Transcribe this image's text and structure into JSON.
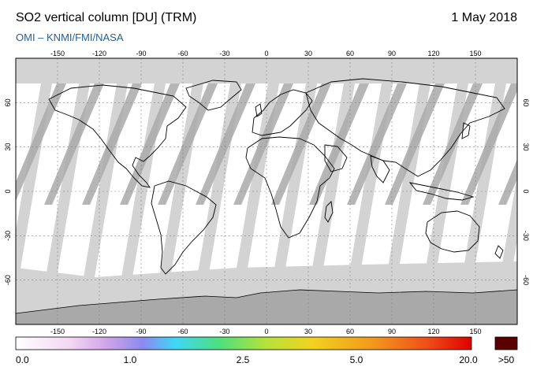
{
  "header": {
    "title": "SO2 vertical column [DU] (TRM)",
    "date": "1 May 2018",
    "credit": "OMI  –  KNMI/FMI/NASA"
  },
  "map": {
    "lon_ticks": [
      "-150",
      "-120",
      "-90",
      "-60",
      "-30",
      "0",
      "30",
      "60",
      "90",
      "120",
      "150"
    ],
    "lat_ticks": [
      "60",
      "30",
      "0",
      "-30",
      "-60"
    ],
    "colors": {
      "background": "#ffffff",
      "no_data": "#d3d3d3",
      "orbit_overlap": "#a9a9a9",
      "coastline": "#000000",
      "grid": "#808080"
    }
  },
  "colorbar": {
    "labels": [
      "0.0",
      "1.0",
      "2.5",
      "5.0",
      "20.0"
    ],
    "overflow_label": ">50",
    "overflow_color": "#5a0000"
  }
}
